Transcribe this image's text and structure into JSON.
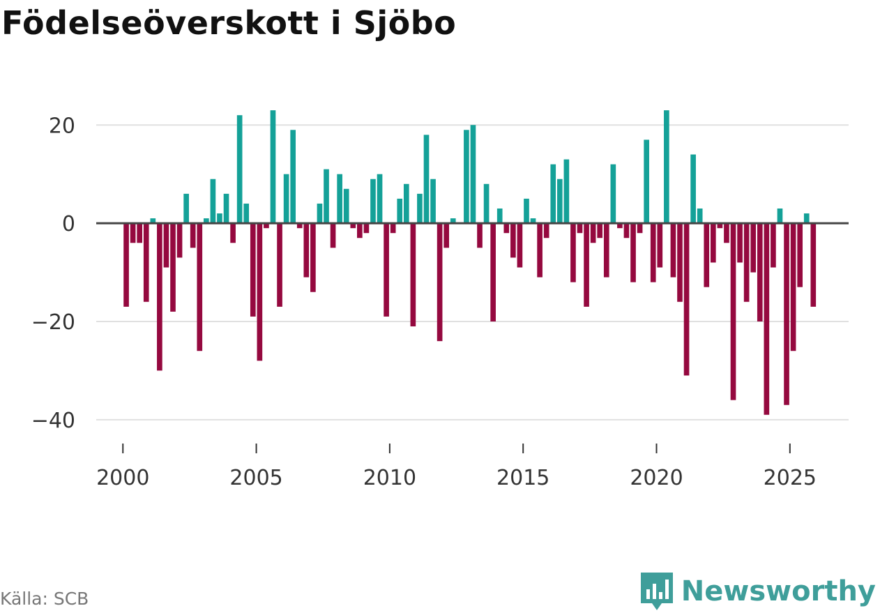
{
  "title": "Födelseöverskott i Sjöbo",
  "source": "Källa: SCB",
  "brand": "Newsworthy",
  "colors": {
    "positive": "#14a198",
    "negative": "#95093f",
    "grid": "#e0e0e0",
    "zero": "#444444",
    "brand": "#3f9e9a"
  },
  "chart_data": {
    "type": "bar",
    "title": "Födelseöverskott i Sjöbo",
    "xlabel": "",
    "ylabel": "",
    "xlim": [
      1999.0,
      2027.2
    ],
    "ylim": [
      -44,
      26
    ],
    "yticks": [
      20,
      0,
      -20,
      -40
    ],
    "ytick_labels": [
      "20",
      "0",
      "−20",
      "−40"
    ],
    "xticks": [
      2000,
      2005,
      2010,
      2015,
      2020,
      2025
    ],
    "xtick_labels": [
      "2000",
      "2005",
      "2010",
      "2015",
      "2020",
      "2025"
    ],
    "start_year": 2000,
    "periods_per_year": 4,
    "first_period": 1,
    "values": [
      -17,
      -4,
      -4,
      -16,
      1,
      -30,
      -9,
      -18,
      -7,
      6,
      -5,
      -26,
      1,
      9,
      2,
      6,
      -4,
      22,
      4,
      -19,
      -28,
      -1,
      23,
      -17,
      10,
      19,
      -1,
      -11,
      -14,
      4,
      11,
      -5,
      10,
      7,
      -1,
      -3,
      -2,
      9,
      10,
      -19,
      -2,
      5,
      8,
      -21,
      6,
      18,
      9,
      -24,
      -5,
      1,
      0,
      19,
      20,
      -5,
      8,
      -20,
      3,
      -2,
      -7,
      -9,
      5,
      1,
      -11,
      -3,
      12,
      9,
      13,
      -12,
      -2,
      -17,
      -4,
      -3,
      -11,
      12,
      -1,
      -3,
      -12,
      -2,
      17,
      -12,
      -9,
      23,
      -11,
      -16,
      -31,
      14,
      3,
      -13,
      -8,
      -1,
      -4,
      -36,
      -8,
      -16,
      -10,
      -20,
      -39,
      -9,
      3,
      -37,
      -26,
      -13,
      2,
      -17
    ]
  }
}
